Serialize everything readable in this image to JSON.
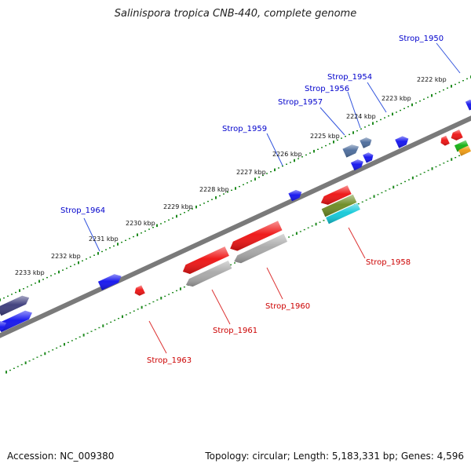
{
  "title": "Salinispora tropica CNB-440, complete genome",
  "footer": {
    "accession": "Accession: NC_009380",
    "summary": "Topology: circular; Length: 5,183,331 bp; Genes: 4,596"
  },
  "colors": {
    "backbone": "#7a7a7a",
    "ticks": "#1e8a1e",
    "forward_label": "#0000cc",
    "reverse_label": "#cc0000",
    "leader_forward": "#3355dd",
    "leader_reverse": "#dd3333"
  },
  "scale_labels": [
    {
      "text": "2222 kbp"
    },
    {
      "text": "2223 kbp"
    },
    {
      "text": "2224 kbp"
    },
    {
      "text": "2225 kbp"
    },
    {
      "text": "2226 kbp"
    },
    {
      "text": "2227 kbp"
    },
    {
      "text": "2228 kbp"
    },
    {
      "text": "2229 kbp"
    },
    {
      "text": "2230 kbp"
    },
    {
      "text": "2231 kbp"
    },
    {
      "text": "2232 kbp"
    },
    {
      "text": "2233 kbp"
    }
  ],
  "gene_labels": [
    {
      "text": "Strop_1950",
      "strand": "forward"
    },
    {
      "text": "Strop_1954",
      "strand": "forward"
    },
    {
      "text": "Strop_1956",
      "strand": "forward"
    },
    {
      "text": "Strop_1957",
      "strand": "forward"
    },
    {
      "text": "Strop_1959",
      "strand": "forward"
    },
    {
      "text": "Strop_1964",
      "strand": "forward"
    },
    {
      "text": "Strop_1958",
      "strand": "reverse"
    },
    {
      "text": "Strop_1960",
      "strand": "reverse"
    },
    {
      "text": "Strop_1961",
      "strand": "reverse"
    },
    {
      "text": "Strop_1963",
      "strand": "reverse"
    }
  ],
  "features": [
    {
      "name": "gene-forward-a",
      "color": "#1010ee"
    },
    {
      "name": "gene-forward-b",
      "color": "#1010ee"
    },
    {
      "name": "gene-forward-c",
      "color": "#1010ee"
    },
    {
      "name": "gene-forward-d",
      "color": "#1010ee"
    },
    {
      "name": "gene-forward-e",
      "color": "#1010ee"
    },
    {
      "name": "gene-forward-f",
      "color": "#1010ee"
    },
    {
      "name": "gene-forward-g",
      "color": "#1010ee"
    },
    {
      "name": "gene-forward-h",
      "color": "#1010ee"
    },
    {
      "name": "gene-forward-i",
      "color": "#4a6a9a"
    },
    {
      "name": "gene-forward-j",
      "color": "#4a6a9a"
    },
    {
      "name": "gene-forward-k",
      "color": "#3a3a7a"
    },
    {
      "name": "gene-reverse-a",
      "color": "#ee1010"
    },
    {
      "name": "gene-reverse-b",
      "color": "#ee1010"
    },
    {
      "name": "gene-reverse-c",
      "color": "#ee1010"
    },
    {
      "name": "gene-reverse-d",
      "color": "#ee1010"
    },
    {
      "name": "gene-reverse-e",
      "color": "#ee1010"
    },
    {
      "name": "gene-reverse-f",
      "color": "#ee1010"
    },
    {
      "name": "cds-grey-a",
      "color": "#a8a8a8"
    },
    {
      "name": "cds-grey-b",
      "color": "#a8a8a8"
    },
    {
      "name": "cds-olive",
      "color": "#6a8a20"
    },
    {
      "name": "cds-cyan",
      "color": "#10c8d8"
    },
    {
      "name": "cds-green",
      "color": "#10b010"
    },
    {
      "name": "cds-orange",
      "color": "#ee9a10"
    }
  ]
}
